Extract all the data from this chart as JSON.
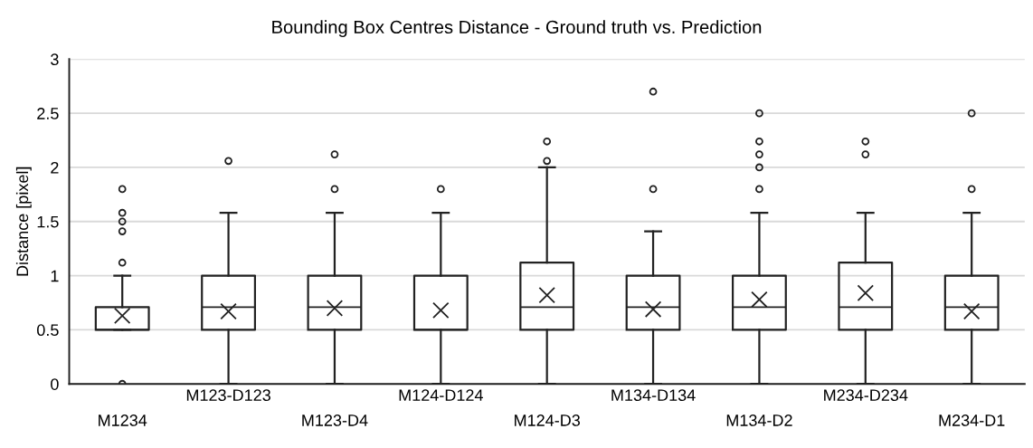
{
  "chart_data": {
    "type": "box",
    "title": "Bounding Box Centres Distance - Ground truth vs. Prediction",
    "ylabel": "Distance [pixel]",
    "categories": [
      "M1234",
      "M123-D123",
      "M123-D4",
      "M124-D124",
      "M124-D3",
      "M134-D134",
      "M134-D2",
      "M234-D234",
      "M234-D1"
    ],
    "boxes": [
      {
        "low": 0.5,
        "q1": 0.5,
        "median": 0.5,
        "q3": 0.71,
        "high": 1.0,
        "mean": 0.63,
        "outliers": [
          0,
          1.12,
          1.41,
          1.5,
          1.58,
          1.8
        ]
      },
      {
        "low": 0,
        "q1": 0.5,
        "median": 0.71,
        "q3": 1.0,
        "high": 1.58,
        "mean": 0.67,
        "outliers": [
          2.06
        ]
      },
      {
        "low": 0,
        "q1": 0.5,
        "median": 0.71,
        "q3": 1.0,
        "high": 1.58,
        "mean": 0.7,
        "outliers": [
          1.8,
          2.12
        ]
      },
      {
        "low": 0,
        "q1": 0.5,
        "median": 0.5,
        "q3": 1.0,
        "high": 1.58,
        "mean": 0.68,
        "outliers": [
          1.8
        ]
      },
      {
        "low": 0,
        "q1": 0.5,
        "median": 0.71,
        "q3": 1.12,
        "high": 2.0,
        "mean": 0.82,
        "outliers": [
          2.06,
          2.24
        ]
      },
      {
        "low": 0,
        "q1": 0.5,
        "median": 0.71,
        "q3": 1.0,
        "high": 1.41,
        "mean": 0.69,
        "outliers": [
          1.8,
          2.7
        ]
      },
      {
        "low": 0,
        "q1": 0.5,
        "median": 0.71,
        "q3": 1.0,
        "high": 1.58,
        "mean": 0.78,
        "outliers": [
          1.8,
          2.0,
          2.12,
          2.24,
          2.5
        ]
      },
      {
        "low": 0,
        "q1": 0.5,
        "median": 0.71,
        "q3": 1.12,
        "high": 1.58,
        "mean": 0.84,
        "outliers": [
          2.12,
          2.24
        ]
      },
      {
        "low": 0,
        "q1": 0.5,
        "median": 0.71,
        "q3": 1.0,
        "high": 1.58,
        "mean": 0.67,
        "outliers": [
          1.8,
          2.5
        ]
      }
    ],
    "color": "#222222",
    "ylim": [
      0,
      3
    ],
    "yticks": [
      0,
      0.5,
      1,
      1.5,
      2,
      2.5,
      3
    ],
    "grid": "y"
  }
}
